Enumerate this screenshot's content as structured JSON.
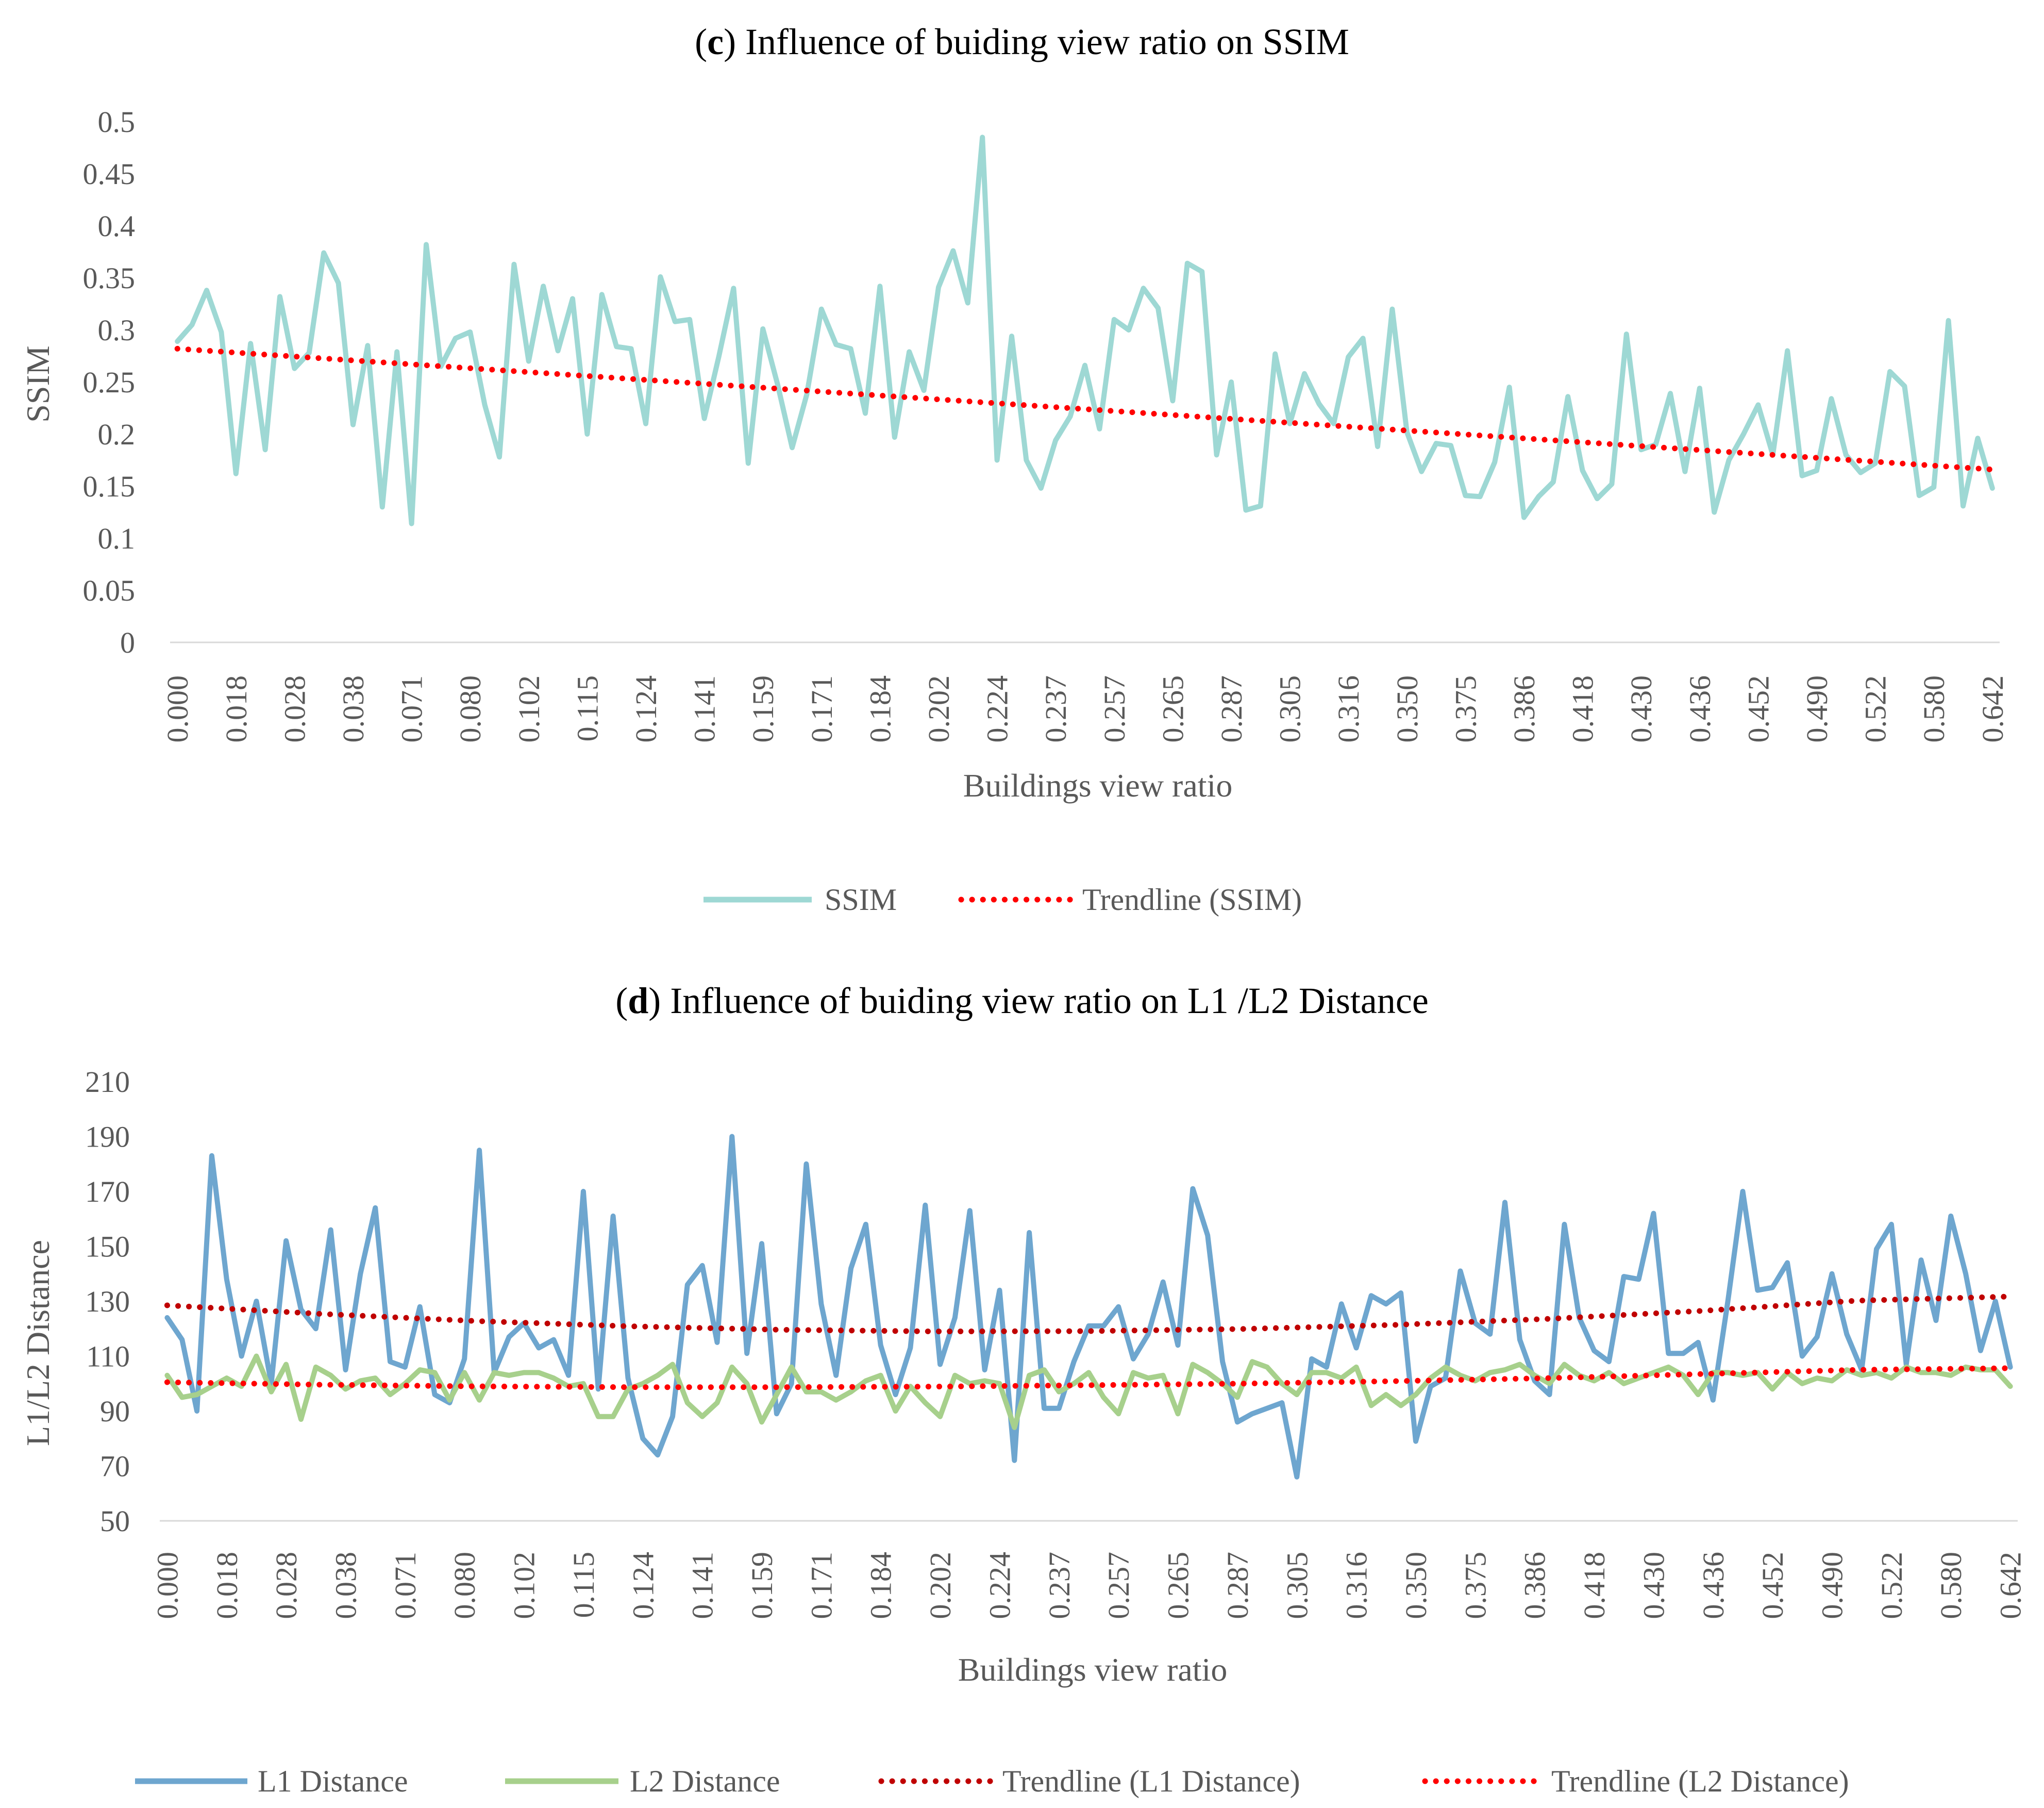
{
  "colors": {
    "ssim": "#9ed8d4",
    "l1": "#6ea6cf",
    "l2": "#a7d08c",
    "trend_ssim": "#ff0000",
    "trend_l1": "#c00000",
    "trend_l2": "#ff0000",
    "axis": "#d9d9d9",
    "text": "#595959"
  },
  "chart_data": [
    {
      "id": "c",
      "type": "line",
      "title_prefix": "(",
      "title_letter": "c",
      "title_text": ") Influence of buiding view ratio on SSIM",
      "xlabel": "Buildings view ratio",
      "ylabel": "SSIM",
      "ylim": [
        0,
        0.5
      ],
      "yticks": [
        "0",
        "0.05",
        "0.1",
        "0.15",
        "0.2",
        "0.25",
        "0.3",
        "0.35",
        "0.4",
        "0.45",
        "0.5"
      ],
      "xtick_labels": [
        "0.000",
        "0.018",
        "0.028",
        "0.038",
        "0.071",
        "0.080",
        "0.102",
        "0.115",
        "0.124",
        "0.141",
        "0.159",
        "0.171",
        "0.184",
        "0.202",
        "0.224",
        "0.237",
        "0.257",
        "0.265",
        "0.287",
        "0.305",
        "0.316",
        "0.350",
        "0.375",
        "0.386",
        "0.418",
        "0.430",
        "0.436",
        "0.452",
        "0.490",
        "0.522",
        "0.580",
        "0.642"
      ],
      "n_points": 125,
      "series": [
        {
          "name": "SSIM",
          "style": "solid",
          "values": [
            0.289,
            0.305,
            0.338,
            0.298,
            0.162,
            0.287,
            0.185,
            0.332,
            0.263,
            0.278,
            0.374,
            0.345,
            0.209,
            0.285,
            0.13,
            0.279,
            0.114,
            0.382,
            0.265,
            0.292,
            0.298,
            0.228,
            0.178,
            0.363,
            0.27,
            0.342,
            0.28,
            0.33,
            0.2,
            0.334,
            0.284,
            0.282,
            0.21,
            0.351,
            0.308,
            0.31,
            0.215,
            0.275,
            0.34,
            0.172,
            0.301,
            0.248,
            0.187,
            0.238,
            0.32,
            0.286,
            0.282,
            0.22,
            0.342,
            0.197,
            0.279,
            0.242,
            0.341,
            0.376,
            0.326,
            0.485,
            0.175,
            0.294,
            0.175,
            0.148,
            0.194,
            0.217,
            0.266,
            0.205,
            0.31,
            0.3,
            0.34,
            0.321,
            0.232,
            0.364,
            0.356,
            0.18,
            0.25,
            0.127,
            0.131,
            0.277,
            0.21,
            0.258,
            0.229,
            0.21,
            0.274,
            0.292,
            0.188,
            0.32,
            0.202,
            0.164,
            0.191,
            0.189,
            0.141,
            0.14,
            0.173,
            0.245,
            0.12,
            0.14,
            0.154,
            0.236,
            0.165,
            0.138,
            0.152,
            0.296,
            0.185,
            0.19,
            0.239,
            0.164,
            0.244,
            0.125,
            0.175,
            0.2,
            0.228,
            0.18,
            0.28,
            0.16,
            0.165,
            0.234,
            0.18,
            0.163,
            0.172,
            0.26,
            0.246,
            0.141,
            0.149,
            0.309,
            0.131,
            0.196,
            0.148
          ]
        },
        {
          "name": "Trendline (SSIM)",
          "style": "dotted",
          "values": [
            0.282,
            0.166
          ]
        }
      ],
      "legend": [
        "SSIM",
        "Trendline (SSIM)"
      ]
    },
    {
      "id": "d",
      "type": "line",
      "title_prefix": "(",
      "title_letter": "d",
      "title_text": ") Influence of buiding view ratio on L1 /L2 Distance",
      "xlabel": "Buildings view ratio",
      "ylabel": "L1/L2 Distance",
      "ylim": [
        50,
        210
      ],
      "yticks": [
        "50",
        "70",
        "90",
        "110",
        "130",
        "150",
        "170",
        "190",
        "210"
      ],
      "xtick_labels": [
        "0.000",
        "0.018",
        "0.028",
        "0.038",
        "0.071",
        "0.080",
        "0.102",
        "0.115",
        "0.124",
        "0.141",
        "0.159",
        "0.171",
        "0.184",
        "0.202",
        "0.224",
        "0.237",
        "0.257",
        "0.265",
        "0.287",
        "0.305",
        "0.316",
        "0.350",
        "0.375",
        "0.386",
        "0.418",
        "0.430",
        "0.436",
        "0.452",
        "0.490",
        "0.522",
        "0.580",
        "0.642"
      ],
      "n_points": 125,
      "series": [
        {
          "name": "L1 Distance",
          "style": "solid",
          "values": [
            124,
            116,
            90,
            183,
            138,
            110,
            130,
            100,
            152,
            127,
            120,
            156,
            105,
            140,
            164,
            108,
            106,
            128,
            96,
            93,
            109,
            185,
            104,
            117,
            122,
            113,
            116,
            103,
            170,
            98,
            161,
            102,
            80,
            74,
            88,
            136,
            143,
            115,
            190,
            111,
            151,
            89,
            100,
            180,
            129,
            103,
            142,
            158,
            114,
            96,
            113,
            165,
            107,
            124,
            163,
            105,
            134,
            72,
            155,
            91,
            91,
            108,
            121,
            121,
            128,
            109,
            118,
            137,
            114,
            171,
            154,
            108,
            86,
            89,
            91,
            93,
            66,
            109,
            106,
            129,
            113,
            132,
            129,
            133,
            79,
            99,
            102,
            141,
            122,
            118,
            166,
            116,
            101,
            96,
            158,
            124,
            112,
            108,
            139,
            138,
            162,
            111,
            111,
            115,
            94,
            130,
            170,
            134,
            135,
            144,
            110,
            117,
            140,
            118,
            105,
            149,
            158,
            107,
            145,
            123,
            161,
            140,
            112,
            130,
            106
          ]
        },
        {
          "name": "L2 Distance",
          "style": "solid",
          "values": [
            103,
            95,
            96,
            99,
            102,
            99,
            110,
            97,
            107,
            87,
            106,
            103,
            98,
            101,
            102,
            96,
            100,
            105,
            104,
            94,
            104,
            94,
            104,
            103,
            104,
            104,
            102,
            99,
            100,
            88,
            88,
            98,
            100,
            103,
            107,
            93,
            88,
            93,
            106,
            100,
            86,
            96,
            106,
            97,
            97,
            94,
            97,
            101,
            103,
            90,
            99,
            93,
            88,
            103,
            100,
            101,
            100,
            84,
            103,
            105,
            97,
            100,
            104,
            95,
            89,
            104,
            102,
            103,
            89,
            107,
            104,
            100,
            95,
            108,
            106,
            100,
            96,
            104,
            104,
            102,
            106,
            92,
            96,
            92,
            96,
            102,
            106,
            103,
            101,
            104,
            105,
            107,
            103,
            100,
            107,
            103,
            101,
            104,
            100,
            102,
            104,
            106,
            103,
            96,
            104,
            104,
            103,
            104,
            98,
            104,
            100,
            102,
            101,
            105,
            103,
            104,
            102,
            106,
            104,
            104,
            103,
            106,
            105,
            105,
            99
          ]
        },
        {
          "name": "Trendline (L1 Distance)",
          "style": "dotted",
          "values": [
            128.5,
            125.4,
            122.8,
            120.9,
            119.6,
            119.0,
            119.1,
            119.9,
            121.4,
            123.6,
            126.5,
            130.2,
            131.7
          ]
        },
        {
          "name": "Trendline (L2 Distance)",
          "style": "dotted",
          "values": [
            100.5,
            99.6,
            99.0,
            98.7,
            98.7,
            98.9,
            99.4,
            100.0,
            100.9,
            102.0,
            103.5,
            105.0,
            105.6
          ]
        }
      ],
      "legend": [
        "L1 Distance",
        "L2 Distance",
        "Trendline (L1 Distance)",
        "Trendline (L2 Distance)"
      ]
    }
  ]
}
